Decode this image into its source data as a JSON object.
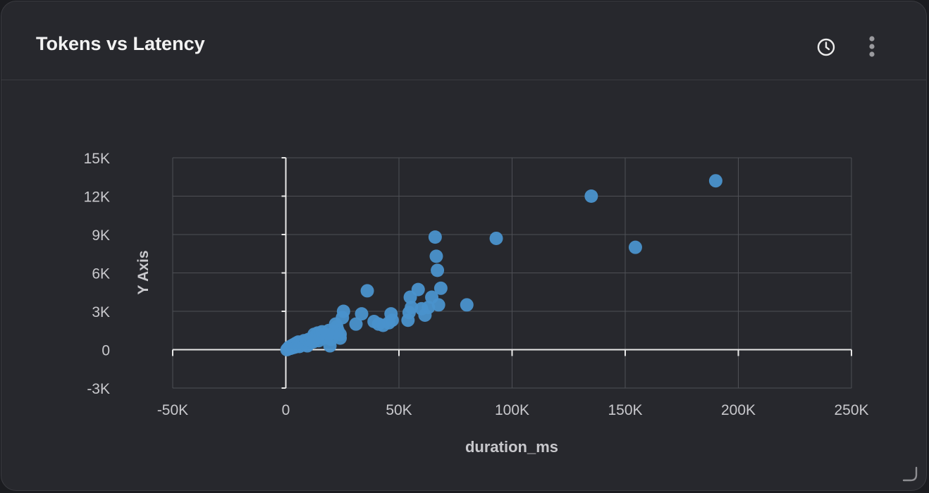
{
  "panel": {
    "title": "Tokens vs Latency",
    "history_icon": "clock-icon",
    "menu_icon": "kebab-menu-icon",
    "resize_icon": "resize-handle-icon"
  },
  "colors": {
    "point": "#4a92cc",
    "grid": "#4e4f55",
    "axis_zero": "#e8e8e8",
    "text": "#c8c8cc",
    "background": "#27282d"
  },
  "chart_data": {
    "type": "scatter",
    "xlabel": "duration_ms",
    "ylabel": "Y Axis",
    "xlim": [
      -50000,
      250000
    ],
    "ylim": [
      -3000,
      15000
    ],
    "x_ticks": [
      -50000,
      0,
      50000,
      100000,
      150000,
      200000,
      250000
    ],
    "x_tick_labels": [
      "-50K",
      "0",
      "50K",
      "100K",
      "150K",
      "200K",
      "250K"
    ],
    "y_ticks": [
      -3000,
      0,
      3000,
      6000,
      9000,
      12000,
      15000
    ],
    "y_tick_labels": [
      "-3K",
      "0",
      "3K",
      "6K",
      "9K",
      "12K",
      "15K"
    ],
    "grid": true,
    "series": [
      {
        "points": [
          [
            500,
            0
          ],
          [
            1000,
            100
          ],
          [
            1500,
            200
          ],
          [
            2000,
            100
          ],
          [
            2500,
            300
          ],
          [
            3000,
            150
          ],
          [
            3500,
            400
          ],
          [
            4000,
            200
          ],
          [
            4500,
            500
          ],
          [
            5000,
            300
          ],
          [
            5500,
            600
          ],
          [
            6000,
            250
          ],
          [
            6500,
            400
          ],
          [
            7000,
            500
          ],
          [
            7500,
            350
          ],
          [
            8000,
            700
          ],
          [
            8500,
            450
          ],
          [
            9000,
            600
          ],
          [
            9500,
            300
          ],
          [
            10000,
            800
          ],
          [
            10500,
            500
          ],
          [
            11000,
            700
          ],
          [
            11500,
            900
          ],
          [
            12000,
            600
          ],
          [
            12500,
            1200
          ],
          [
            13000,
            800
          ],
          [
            13500,
            1000
          ],
          [
            14000,
            1300
          ],
          [
            14500,
            700
          ],
          [
            15000,
            1100
          ],
          [
            16000,
            1400
          ],
          [
            16500,
            900
          ],
          [
            17000,
            1200
          ],
          [
            18000,
            1000
          ],
          [
            19000,
            1500
          ],
          [
            19500,
            300
          ],
          [
            20000,
            800
          ],
          [
            21000,
            1300
          ],
          [
            22000,
            2000
          ],
          [
            22500,
            1800
          ],
          [
            23000,
            1500
          ],
          [
            24000,
            1200
          ],
          [
            24000,
            900
          ],
          [
            25000,
            2500
          ],
          [
            25500,
            3000
          ],
          [
            31000,
            2000
          ],
          [
            33500,
            2800
          ],
          [
            36000,
            4600
          ],
          [
            39000,
            2200
          ],
          [
            41000,
            2000
          ],
          [
            43000,
            1900
          ],
          [
            45500,
            2100
          ],
          [
            46500,
            2800
          ],
          [
            47000,
            2300
          ],
          [
            54000,
            2300
          ],
          [
            54500,
            2900
          ],
          [
            55500,
            3300
          ],
          [
            55000,
            4100
          ],
          [
            58500,
            4700
          ],
          [
            60000,
            3200
          ],
          [
            61500,
            2700
          ],
          [
            63000,
            3300
          ],
          [
            64500,
            4100
          ],
          [
            66000,
            8800
          ],
          [
            66500,
            7300
          ],
          [
            67000,
            6200
          ],
          [
            67500,
            3500
          ],
          [
            68500,
            4800
          ],
          [
            80000,
            3500
          ],
          [
            93000,
            8700
          ],
          [
            135000,
            12000
          ],
          [
            154500,
            8000
          ],
          [
            190000,
            13200
          ]
        ]
      }
    ]
  }
}
